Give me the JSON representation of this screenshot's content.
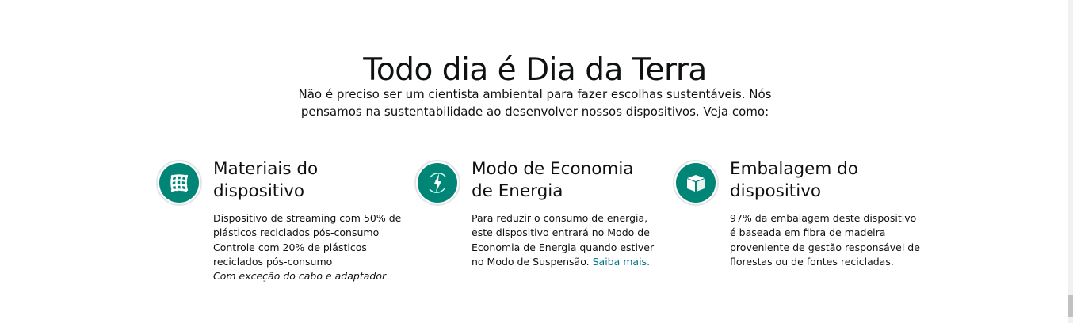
{
  "header": {
    "title": "Todo dia é Dia da Terra",
    "subtitle": "Não é preciso ser um cientista ambiental para fazer escolhas sustentáveis. Nós pensamos na sustentabilidade ao desenvolver nossos dispositivos. Veja como:"
  },
  "accent_color": "#008577",
  "features": [
    {
      "icon": "mesh-icon",
      "title": "Materiais do dispositivo",
      "body": "Dispositivo de streaming com 50% de plásticos reciclados pós-consumo Controle com 20% de plásticos reciclados pós-consumo",
      "note": "Com exceção do cabo e adaptador"
    },
    {
      "icon": "energy-cycle-icon",
      "title": "Modo de Economia de Energia",
      "body": "Para reduzir o consumo de energia, este dispositivo entrará no Modo de Economia de Energia quando estiver no Modo de Suspensão.",
      "link": "Saiba mais."
    },
    {
      "icon": "box-icon",
      "title": "Embalagem do dispositivo",
      "body": "97% da embalagem deste dispositivo é baseada em fibra de madeira proveniente de gestão responsável de florestas ou de fontes recicladas."
    }
  ]
}
